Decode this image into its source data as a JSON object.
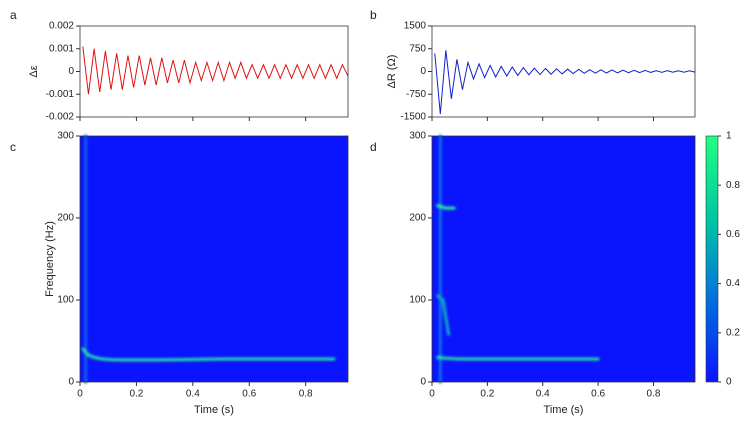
{
  "chart_data": [
    {
      "type": "line",
      "label": "a",
      "ylabel": "Δε",
      "color": "#e01010",
      "x": [
        0.01,
        0.03,
        0.05,
        0.07,
        0.09,
        0.11,
        0.13,
        0.15,
        0.17,
        0.19,
        0.21,
        0.23,
        0.25,
        0.27,
        0.29,
        0.31,
        0.33,
        0.35,
        0.37,
        0.39,
        0.41,
        0.43,
        0.45,
        0.47,
        0.49,
        0.51,
        0.53,
        0.55,
        0.57,
        0.59,
        0.61,
        0.63,
        0.65,
        0.67,
        0.69,
        0.71,
        0.73,
        0.75,
        0.77,
        0.79,
        0.81,
        0.83,
        0.85,
        0.87,
        0.89,
        0.91,
        0.93,
        0.95
      ],
      "values": [
        0.0011,
        -0.001,
        0.001,
        -0.0009,
        0.0009,
        -0.0008,
        0.0008,
        -0.0008,
        0.0007,
        -0.0007,
        0.0007,
        -0.0006,
        0.0006,
        -0.0006,
        0.0006,
        -0.0005,
        0.0005,
        -0.0005,
        0.0005,
        -0.0005,
        0.0004,
        -0.0004,
        0.0004,
        -0.0004,
        0.0004,
        -0.0004,
        0.0004,
        -0.0003,
        0.0004,
        -0.0003,
        0.0003,
        -0.0003,
        0.0003,
        -0.0003,
        0.0003,
        -0.0003,
        0.0003,
        -0.0003,
        0.0003,
        -0.0003,
        0.0003,
        -0.0003,
        0.0003,
        -0.0003,
        0.0003,
        -0.0003,
        0.0003,
        -0.0002
      ],
      "xlim": [
        0,
        0.95
      ],
      "xticks": [
        0,
        0.2,
        0.4,
        0.6,
        0.8
      ],
      "ylim": [
        -0.002,
        0.002
      ],
      "yticks": [
        -0.002,
        -0.001,
        0,
        0.001,
        0.002
      ]
    },
    {
      "type": "line",
      "label": "b",
      "ylabel": "ΔR (Ω)",
      "color": "#1020d0",
      "x": [
        0.01,
        0.03,
        0.05,
        0.07,
        0.09,
        0.11,
        0.13,
        0.15,
        0.17,
        0.19,
        0.21,
        0.23,
        0.25,
        0.27,
        0.29,
        0.31,
        0.33,
        0.35,
        0.37,
        0.39,
        0.41,
        0.43,
        0.45,
        0.47,
        0.49,
        0.51,
        0.53,
        0.55,
        0.57,
        0.59,
        0.61,
        0.63,
        0.65,
        0.67,
        0.69,
        0.71,
        0.73,
        0.75,
        0.77,
        0.79,
        0.81,
        0.83,
        0.85,
        0.87,
        0.89,
        0.91,
        0.93,
        0.95
      ],
      "values": [
        600,
        -1400,
        700,
        -900,
        400,
        -600,
        300,
        -250,
        250,
        -200,
        200,
        -180,
        170,
        -150,
        150,
        -130,
        130,
        -110,
        110,
        -100,
        100,
        -90,
        90,
        -80,
        80,
        -70,
        70,
        -60,
        60,
        -55,
        55,
        -50,
        50,
        -45,
        45,
        -40,
        40,
        -35,
        35,
        -30,
        30,
        -30,
        30,
        -25,
        25,
        -25,
        25,
        -20
      ],
      "xlim": [
        0,
        0.95
      ],
      "xticks": [
        0,
        0.2,
        0.4,
        0.6,
        0.8
      ],
      "ylim": [
        -1500,
        1500
      ],
      "yticks": [
        -1500,
        -750,
        0,
        750,
        1500
      ]
    },
    {
      "type": "spectrogram",
      "label": "c",
      "ylabel": "Frequency (Hz)",
      "xlabel": "Time (s)",
      "background": "#0a14ff",
      "ridges": [
        {
          "x": [
            0.02,
            0.02
          ],
          "y": [
            0,
            300
          ],
          "color": "#1060f0"
        },
        {
          "x": [
            0.01,
            0.03,
            0.05,
            0.08,
            0.12,
            0.2,
            0.3,
            0.4,
            0.5,
            0.6,
            0.7,
            0.8,
            0.9
          ],
          "y": [
            40,
            33,
            30,
            28,
            27,
            27,
            27,
            27.5,
            28,
            28,
            28,
            28,
            28
          ],
          "color": "#20e0a0"
        }
      ],
      "xlim": [
        0,
        0.95
      ],
      "xticks": [
        0,
        0.2,
        0.4,
        0.6,
        0.8
      ],
      "ylim": [
        0,
        300
      ],
      "yticks": [
        0,
        100,
        200,
        300
      ]
    },
    {
      "type": "spectrogram",
      "label": "d",
      "xlabel": "Time (s)",
      "background": "#0a14ff",
      "ridges": [
        {
          "x": [
            0.03,
            0.03
          ],
          "y": [
            0,
            300
          ],
          "color": "#1070e8"
        },
        {
          "x": [
            0.02,
            0.05,
            0.1,
            0.2,
            0.3,
            0.4,
            0.5,
            0.6
          ],
          "y": [
            30,
            29,
            28,
            28,
            28,
            28,
            28,
            28
          ],
          "color": "#20e0a0"
        },
        {
          "x": [
            0.02,
            0.05,
            0.08
          ],
          "y": [
            215,
            212,
            212
          ],
          "color": "#30f090"
        },
        {
          "x": [
            0.02,
            0.04,
            0.06
          ],
          "y": [
            105,
            100,
            58
          ],
          "color": "#10b0c0"
        }
      ],
      "xlim": [
        0,
        0.95
      ],
      "xticks": [
        0,
        0.2,
        0.4,
        0.6,
        0.8
      ],
      "ylim": [
        0,
        300
      ],
      "yticks": [
        0,
        100,
        200,
        300
      ],
      "colorbar": {
        "lim": [
          0,
          1
        ],
        "ticks": [
          0,
          0.2,
          0.4,
          0.6,
          0.8,
          1
        ],
        "colors": [
          "#0a14ff",
          "#0070e0",
          "#00c8a0",
          "#20ff80"
        ]
      }
    }
  ]
}
